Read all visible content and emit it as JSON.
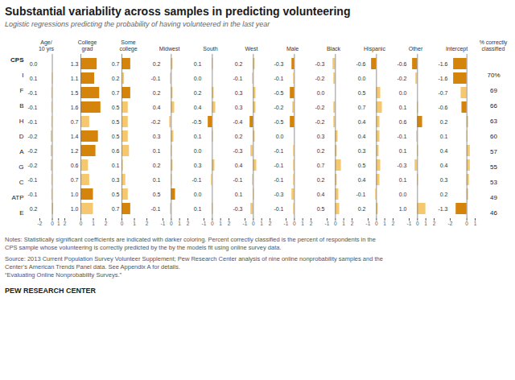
{
  "title": "Substantial variability across samples in predicting volunteering",
  "subtitle": "Logistic regressions predicting the probability of having volunteered in the last year",
  "annotations": [
    "Notes: Statistically significant coefficients are indicated with darker coloring. Percent correctly classified is the percent of respondents in the",
    "CPS sample whose volunteering is correctly predicted by the by the models fit using online survey data.",
    "Source: 2013 Current Population Survey Volunteer Supplement; Pew Research Center analysis of nine online nonprobability samples and the",
    "Center’s American Trends Panel data. See Appendix A for details.",
    "“Evaluating Online Nonprobability Surveys.”",
    "PEW RESEARCH CENTER"
  ],
  "chart_data": [
    {
      "type": "bar",
      "orientation": "horizontal",
      "title": "Age/\n10 yrs",
      "categories": [
        "CPS",
        "I",
        "F",
        "B",
        "H",
        "D",
        "A",
        "G",
        "C",
        "ATP",
        "E"
      ],
      "values": [
        0.0,
        0.1,
        -0.1,
        -0.1,
        -0.1,
        -0.2,
        -0.2,
        -0.2,
        -0.1,
        -0.1,
        0.2
      ],
      "value_labels": [
        "0.0",
        "0.1",
        "-0.1",
        "-0.1",
        "-0.1",
        "-0.2",
        "-0.2",
        "-0.2",
        "-0.1",
        "-0.1",
        "0.2"
      ],
      "colors": [
        "#f5c76e",
        "#f5c76e",
        "#f5c76e",
        "#f5c76e",
        "#f5c76e",
        "#f5c76e",
        "#f5c76e",
        "#f5c76e",
        "#f5c76e",
        "#f5c76e",
        "#f5c76e"
      ],
      "xlim": [
        -2,
        2
      ],
      "xticks": [
        -2,
        0,
        1,
        2
      ],
      "data_labels": true
    },
    {
      "type": "bar",
      "orientation": "horizontal",
      "title": "College\ngrad",
      "categories": [
        "CPS",
        "I",
        "F",
        "B",
        "H",
        "D",
        "A",
        "G",
        "C",
        "ATP",
        "E"
      ],
      "values": [
        1.3,
        1.1,
        1.5,
        1.6,
        0.7,
        1.4,
        1.2,
        0.6,
        0.7,
        1.0,
        1.0
      ],
      "value_labels": [
        "1.3",
        "1.1",
        "1.5",
        "1.6",
        "0.7",
        "1.4",
        "1.2",
        "0.6",
        "0.7",
        "1.0",
        "1.0"
      ],
      "colors": [
        "#d4840a",
        "#d4840a",
        "#d4840a",
        "#d4840a",
        "#f5c76e",
        "#d4840a",
        "#d4840a",
        "#f5c76e",
        "#f5c76e",
        "#d4840a",
        "#f5c76e"
      ],
      "xlim": [
        0,
        2
      ],
      "xticks": [
        0,
        1,
        2
      ],
      "data_labels": true
    },
    {
      "type": "bar",
      "orientation": "horizontal",
      "title": "Some\ncollege",
      "categories": [
        "CPS",
        "I",
        "F",
        "B",
        "H",
        "D",
        "A",
        "G",
        "C",
        "ATP",
        "E"
      ],
      "values": [
        0.7,
        0.2,
        0.7,
        0.5,
        0.5,
        0.5,
        0.6,
        0.1,
        0.3,
        0.5,
        0.7
      ],
      "value_labels": [
        "0.7",
        "0.2",
        "0.7",
        "0.5",
        "0.5",
        "0.5",
        "0.6",
        "0.1",
        "0.3",
        "0.5",
        "0.7"
      ],
      "colors": [
        "#d4840a",
        "#f5c76e",
        "#d4840a",
        "#f5c76e",
        "#f5c76e",
        "#f5c76e",
        "#f5c76e",
        "#f5c76e",
        "#f5c76e",
        "#f5c76e",
        "#d4840a"
      ],
      "xlim": [
        0,
        2
      ],
      "xticks": [
        0,
        1,
        2
      ],
      "data_labels": true
    },
    {
      "type": "bar",
      "orientation": "horizontal",
      "title": "Midwest",
      "categories": [
        "CPS",
        "I",
        "F",
        "B",
        "H",
        "D",
        "A",
        "G",
        "C",
        "ATP",
        "E"
      ],
      "values": [
        0.2,
        -0.1,
        0.2,
        0.4,
        -0.2,
        0.3,
        0.1,
        0.2,
        0.1,
        0.5,
        -0.1
      ],
      "value_labels": [
        "0.2",
        "-0.1",
        "0.2",
        "0.4",
        "-0.2",
        "0.3",
        "0.1",
        "0.2",
        "0.1",
        "0.5",
        "-0.1"
      ],
      "colors": [
        "#f5c76e",
        "#f5c76e",
        "#f5c76e",
        "#f5c76e",
        "#f5c76e",
        "#f5c76e",
        "#f5c76e",
        "#f5c76e",
        "#f5c76e",
        "#d4840a",
        "#f5c76e"
      ],
      "xlim": [
        -1,
        2
      ],
      "xticks": [
        -1,
        0,
        1,
        2
      ],
      "data_labels": true
    },
    {
      "type": "bar",
      "orientation": "horizontal",
      "title": "South",
      "categories": [
        "CPS",
        "I",
        "F",
        "B",
        "H",
        "D",
        "A",
        "G",
        "C",
        "ATP",
        "E"
      ],
      "values": [
        0.1,
        0.0,
        0.2,
        0.4,
        -0.5,
        0.1,
        0.0,
        0.3,
        -0.1,
        0.0,
        0.1
      ],
      "value_labels": [
        "0.1",
        "0.0",
        "0.2",
        "0.4",
        "-0.5",
        "0.1",
        "0.0",
        "0.3",
        "-0.1",
        "0.0",
        "0.1"
      ],
      "colors": [
        "#f5c76e",
        "#f5c76e",
        "#f5c76e",
        "#f5c76e",
        "#d4840a",
        "#f5c76e",
        "#f5c76e",
        "#f5c76e",
        "#f5c76e",
        "#f5c76e",
        "#f5c76e"
      ],
      "xlim": [
        -1,
        2
      ],
      "xticks": [
        -1,
        0,
        1,
        2
      ],
      "data_labels": true
    },
    {
      "type": "bar",
      "orientation": "horizontal",
      "title": "West",
      "categories": [
        "CPS",
        "I",
        "F",
        "B",
        "H",
        "D",
        "A",
        "G",
        "C",
        "ATP",
        "E"
      ],
      "values": [
        0.2,
        -0.1,
        0.3,
        0.3,
        -0.4,
        0.2,
        -0.3,
        0.4,
        -0.1,
        0.1,
        -0.3
      ],
      "value_labels": [
        "0.2",
        "-0.1",
        "0.3",
        "0.3",
        "-0.4",
        "0.2",
        "-0.3",
        "0.4",
        "-0.1",
        "0.1",
        "-0.3"
      ],
      "colors": [
        "#f5c76e",
        "#f5c76e",
        "#f5c76e",
        "#f5c76e",
        "#d4840a",
        "#f5c76e",
        "#f5c76e",
        "#f5c76e",
        "#f5c76e",
        "#f5c76e",
        "#f5c76e"
      ],
      "xlim": [
        -1,
        2
      ],
      "xticks": [
        -1,
        0,
        1,
        2
      ],
      "data_labels": true
    },
    {
      "type": "bar",
      "orientation": "horizontal",
      "title": "Male",
      "categories": [
        "CPS",
        "I",
        "F",
        "B",
        "H",
        "D",
        "A",
        "G",
        "C",
        "ATP",
        "E"
      ],
      "values": [
        -0.3,
        -0.1,
        -0.5,
        -0.2,
        -0.5,
        0.0,
        -0.1,
        -0.1,
        -0.1,
        -0.3,
        -0.1
      ],
      "value_labels": [
        "-0.3",
        "-0.1",
        "-0.5",
        "-0.2",
        "-0.5",
        "0.0",
        "-0.1",
        "-0.1",
        "-0.1",
        "-0.3",
        "-0.1"
      ],
      "colors": [
        "#d4840a",
        "#f5c76e",
        "#d4840a",
        "#f5c76e",
        "#d4840a",
        "#f5c76e",
        "#f5c76e",
        "#f5c76e",
        "#f5c76e",
        "#f5c76e",
        "#f5c76e"
      ],
      "xlim": [
        -1,
        2
      ],
      "xticks": [
        -1,
        0,
        1,
        2
      ],
      "data_labels": true
    },
    {
      "type": "bar",
      "orientation": "horizontal",
      "title": "Black",
      "categories": [
        "CPS",
        "I",
        "F",
        "B",
        "H",
        "D",
        "A",
        "G",
        "C",
        "ATP",
        "E"
      ],
      "values": [
        -0.3,
        -0.2,
        0.0,
        -0.2,
        -0.2,
        0.3,
        0.2,
        0.7,
        0.2,
        0.4,
        0.5
      ],
      "value_labels": [
        "-0.3",
        "-0.2",
        "0.0",
        "-0.2",
        "-0.2",
        "0.3",
        "0.2",
        "0.7",
        "0.2",
        "0.4",
        "0.5"
      ],
      "colors": [
        "#f5c76e",
        "#f5c76e",
        "#f5c76e",
        "#f5c76e",
        "#f5c76e",
        "#f5c76e",
        "#f5c76e",
        "#f5c76e",
        "#f5c76e",
        "#f5c76e",
        "#f5c76e"
      ],
      "xlim": [
        -1,
        2
      ],
      "xticks": [
        -1,
        0,
        1,
        2
      ],
      "data_labels": true
    },
    {
      "type": "bar",
      "orientation": "horizontal",
      "title": "Hispanic",
      "categories": [
        "CPS",
        "I",
        "F",
        "B",
        "H",
        "D",
        "A",
        "G",
        "C",
        "ATP",
        "E"
      ],
      "values": [
        -0.6,
        0.0,
        0.5,
        0.7,
        0.4,
        0.4,
        0.3,
        0.5,
        0.4,
        -0.1,
        0.2
      ],
      "value_labels": [
        "-0.6",
        "0.0",
        "0.5",
        "0.7",
        "0.4",
        "0.4",
        "0.3",
        "0.5",
        "0.4",
        "-0.1",
        "0.2"
      ],
      "colors": [
        "#d4840a",
        "#f5c76e",
        "#f5c76e",
        "#f5c76e",
        "#f5c76e",
        "#f5c76e",
        "#f5c76e",
        "#f5c76e",
        "#f5c76e",
        "#f5c76e",
        "#f5c76e"
      ],
      "xlim": [
        -1,
        2
      ],
      "xticks": [
        -1,
        0,
        1,
        2
      ],
      "data_labels": true
    },
    {
      "type": "bar",
      "orientation": "horizontal",
      "title": "Other",
      "categories": [
        "CPS",
        "I",
        "F",
        "B",
        "H",
        "D",
        "A",
        "G",
        "C",
        "ATP",
        "E"
      ],
      "values": [
        -0.6,
        -0.2,
        0.0,
        0.1,
        0.6,
        -0.1,
        0.1,
        -0.3,
        0.1,
        0.0,
        1.0
      ],
      "value_labels": [
        "-0.6",
        "-0.2",
        "0.0",
        "0.1",
        "0.6",
        "-0.1",
        "0.1",
        "-0.3",
        "0.1",
        "0.0",
        "1.0"
      ],
      "colors": [
        "#d4840a",
        "#f5c76e",
        "#f5c76e",
        "#f5c76e",
        "#d4840a",
        "#f5c76e",
        "#f5c76e",
        "#f5c76e",
        "#f5c76e",
        "#f5c76e",
        "#f5c76e"
      ],
      "xlim": [
        -1,
        2
      ],
      "xticks": [
        -1,
        0,
        1,
        2
      ],
      "data_labels": true
    },
    {
      "type": "bar",
      "orientation": "horizontal",
      "title": "Intercept",
      "categories": [
        "CPS",
        "I",
        "F",
        "B",
        "H",
        "D",
        "A",
        "G",
        "C",
        "ATP",
        "E"
      ],
      "values": [
        -1.6,
        -1.6,
        -0.7,
        -0.6,
        0.2,
        0.1,
        0.4,
        0.4,
        0.3,
        0.2,
        -1.3
      ],
      "value_labels": [
        "-1.6",
        "-1.6",
        "-0.7",
        "-0.6",
        "0.2",
        "0.1",
        "0.4",
        "0.4",
        "0.3",
        "0.2",
        "-1.3"
      ],
      "colors": [
        "#d4840a",
        "#d4840a",
        "#f5c76e",
        "#d4840a",
        "#f5c76e",
        "#f5c76e",
        "#f5c76e",
        "#f5c76e",
        "#f5c76e",
        "#f5c76e",
        "#d4840a"
      ],
      "xlim": [
        -2,
        1
      ],
      "xticks": [
        -2,
        0,
        1
      ],
      "data_labels": true
    },
    {
      "type": "table",
      "title": "% correctly\nclassified",
      "categories": [
        "CPS",
        "I",
        "F",
        "B",
        "H",
        "D",
        "A",
        "G",
        "C",
        "ATP",
        "E"
      ],
      "values": [
        null,
        70,
        69,
        66,
        63,
        60,
        57,
        55,
        53,
        49,
        46
      ],
      "value_labels": [
        null,
        "70%",
        "69",
        "66",
        "63",
        "60",
        "57",
        "55",
        "53",
        "49",
        "46"
      ],
      "data_labels": true
    }
  ]
}
